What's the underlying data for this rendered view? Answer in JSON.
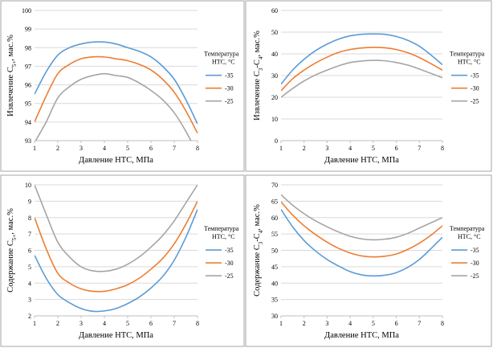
{
  "legend": {
    "title_line1": "Температура",
    "title_line2": "НТС, °С"
  },
  "colors": {
    "-35": "#5b9bd5",
    "-30": "#ed7d31",
    "-25": "#a5a5a5",
    "grid": "#d9d9d9",
    "axis": "#bfbfbf",
    "text": "#000000"
  },
  "chart_data": [
    {
      "type": "line",
      "title": "",
      "xlabel": "Давление НТС, МПа",
      "ylabel": "Извлечение C5+, мас.%",
      "ylabel_parts": [
        "Извлечение C",
        "5+",
        ", мас.%"
      ],
      "xlim": [
        1,
        8
      ],
      "ylim": [
        93,
        100
      ],
      "xticks": [
        1,
        2,
        3,
        4,
        5,
        6,
        7,
        8
      ],
      "yticks": [
        93,
        94,
        95,
        96,
        97,
        98,
        99,
        100
      ],
      "grid": true,
      "legend_position": "right",
      "x": [
        1,
        1.5,
        2,
        2.5,
        3,
        3.5,
        4,
        4.5,
        5,
        5.5,
        6,
        6.5,
        7,
        7.5,
        8
      ],
      "series": [
        {
          "name": "-35",
          "values": [
            95.5,
            96.7,
            97.6,
            98.0,
            98.2,
            98.3,
            98.3,
            98.2,
            98.0,
            97.8,
            97.5,
            97.0,
            96.3,
            95.2,
            93.9
          ]
        },
        {
          "name": "-30",
          "values": [
            94.0,
            95.4,
            96.6,
            97.1,
            97.4,
            97.5,
            97.5,
            97.4,
            97.3,
            97.1,
            96.8,
            96.3,
            95.6,
            94.6,
            93.4
          ]
        },
        {
          "name": "-25",
          "values": [
            92.9,
            94.0,
            95.3,
            95.9,
            96.3,
            96.5,
            96.6,
            96.5,
            96.4,
            96.1,
            95.7,
            95.2,
            94.5,
            93.5,
            92.3
          ]
        }
      ]
    },
    {
      "type": "line",
      "title": "",
      "xlabel": "Давление НТС, МПа",
      "ylabel": "Извлечение C3-C4, мас.%",
      "ylabel_parts": [
        "Извлечение C",
        "3",
        "-C",
        "4",
        ", мас.%"
      ],
      "xlim": [
        1,
        8
      ],
      "ylim": [
        0,
        60
      ],
      "xticks": [
        1,
        2,
        3,
        4,
        5,
        6,
        7,
        8
      ],
      "yticks": [
        0,
        10,
        20,
        30,
        40,
        50,
        60
      ],
      "grid": true,
      "legend_position": "right",
      "x": [
        1,
        1.5,
        2,
        2.5,
        3,
        3.5,
        4,
        4.5,
        5,
        5.5,
        6,
        6.5,
        7,
        7.5,
        8
      ],
      "series": [
        {
          "name": "-35",
          "values": [
            26,
            32.5,
            37.5,
            41.5,
            44.5,
            46.8,
            48.3,
            49,
            49.2,
            49,
            48,
            46.2,
            43.5,
            39.5,
            35
          ]
        },
        {
          "name": "-30",
          "values": [
            23,
            28.5,
            32.5,
            35.8,
            38.5,
            40.7,
            42,
            42.7,
            43,
            42.8,
            42,
            40.5,
            38.3,
            35.5,
            32.5
          ]
        },
        {
          "name": "-25",
          "values": [
            20,
            24,
            27.5,
            30.3,
            32.5,
            34.5,
            36,
            36.7,
            37,
            36.8,
            36,
            34.8,
            33,
            31,
            29
          ]
        }
      ]
    },
    {
      "type": "line",
      "title": "",
      "xlabel": "Давление НТС, МПа",
      "ylabel": "Содержание C5+, мас.%",
      "ylabel_parts": [
        "Содержание C",
        "5+",
        ", мас.%"
      ],
      "xlim": [
        1,
        8
      ],
      "ylim": [
        2,
        10
      ],
      "xticks": [
        1,
        2,
        3,
        4,
        5,
        6,
        7,
        8
      ],
      "yticks": [
        2,
        3,
        4,
        5,
        6,
        7,
        8,
        9,
        10
      ],
      "grid": true,
      "legend_position": "right",
      "x": [
        1,
        1.5,
        2,
        2.5,
        3,
        3.5,
        4,
        4.5,
        5,
        5.5,
        6,
        6.5,
        7,
        7.5,
        8
      ],
      "series": [
        {
          "name": "-35",
          "values": [
            5.7,
            4.3,
            3.3,
            2.8,
            2.45,
            2.28,
            2.3,
            2.45,
            2.75,
            3.15,
            3.7,
            4.4,
            5.4,
            6.8,
            8.5
          ]
        },
        {
          "name": "-30",
          "values": [
            8.0,
            6.1,
            4.6,
            4.0,
            3.65,
            3.5,
            3.5,
            3.65,
            3.9,
            4.3,
            4.85,
            5.5,
            6.4,
            7.6,
            9.0
          ]
        },
        {
          "name": "-25",
          "values": [
            10.0,
            8.2,
            6.5,
            5.6,
            5.0,
            4.75,
            4.72,
            4.85,
            5.15,
            5.6,
            6.2,
            6.9,
            7.8,
            8.9,
            10.0
          ]
        }
      ]
    },
    {
      "type": "line",
      "title": "",
      "xlabel": "Давление НТС, МПа",
      "ylabel": "Содержание C3-C4, мас.%",
      "ylabel_parts": [
        "Содержание C",
        "3",
        "-C",
        "4",
        ", мас.%"
      ],
      "xlim": [
        1,
        8
      ],
      "ylim": [
        30,
        70
      ],
      "xticks": [
        1,
        2,
        3,
        4,
        5,
        6,
        7,
        8
      ],
      "yticks": [
        30,
        35,
        40,
        45,
        50,
        55,
        60,
        65,
        70
      ],
      "grid": true,
      "legend_position": "right",
      "x": [
        1,
        1.5,
        2,
        2.5,
        3,
        3.5,
        4,
        4.5,
        5,
        5.5,
        6,
        6.5,
        7,
        7.5,
        8
      ],
      "series": [
        {
          "name": "-35",
          "values": [
            62.5,
            57.2,
            53,
            49.8,
            47.2,
            45.2,
            43.5,
            42.5,
            42.2,
            42.4,
            43.2,
            44.8,
            47.2,
            50.5,
            54
          ]
        },
        {
          "name": "-30",
          "values": [
            64.8,
            60.8,
            57.5,
            54.8,
            52.5,
            50.6,
            49.2,
            48.3,
            48,
            48.2,
            48.9,
            50.3,
            52.2,
            54.6,
            57.5
          ]
        },
        {
          "name": "-25",
          "values": [
            67,
            63.8,
            61.2,
            59,
            57.2,
            55.6,
            54.3,
            53.5,
            53.2,
            53.4,
            54,
            55.2,
            56.8,
            58.4,
            60
          ]
        }
      ]
    }
  ]
}
